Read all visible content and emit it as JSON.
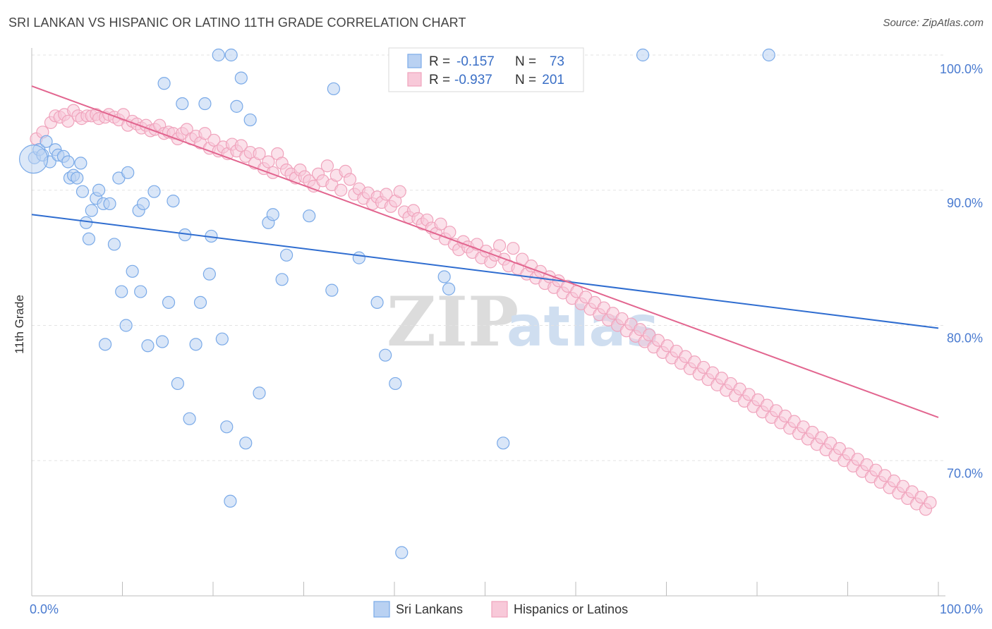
{
  "title": "SRI LANKAN VS HISPANIC OR LATINO 11TH GRADE CORRELATION CHART",
  "source": "Source: ZipAtlas.com",
  "watermark": {
    "zip": "ZIP",
    "atlas": "atlas"
  },
  "chart_data": {
    "type": "scatter",
    "xlabel": "",
    "ylabel": "11th Grade",
    "xlim": [
      0,
      100
    ],
    "ylim": [
      60,
      100
    ],
    "x_tick_labels": [
      "0.0%",
      "100.0%"
    ],
    "y_ticks": [
      70,
      80,
      90,
      100
    ],
    "y_tick_labels": [
      "70.0%",
      "80.0%",
      "90.0%",
      "100.0%"
    ],
    "grid": true,
    "legend_top": {
      "r_label": "R =",
      "n_label": "N =",
      "entries": [
        {
          "r": "-0.157",
          "n": "73"
        },
        {
          "r": "-0.937",
          "n": "201"
        }
      ]
    },
    "legend_bottom": [
      "Sri Lankans",
      "Hispanics or Latinos"
    ],
    "series": [
      {
        "name": "Sri Lankans",
        "color": "#7aaae8",
        "fill": "#b9d1f2",
        "trend": {
          "x": [
            0,
            100
          ],
          "y": [
            88.2,
            79.8
          ],
          "color": "#2f6dd0"
        },
        "points": [
          [
            0.3,
            92.4
          ],
          [
            0.8,
            93.0
          ],
          [
            1.2,
            92.6
          ],
          [
            1.6,
            93.6
          ],
          [
            2.0,
            92.1
          ],
          [
            2.6,
            93.0
          ],
          [
            2.9,
            92.6
          ],
          [
            3.5,
            92.5
          ],
          [
            4.0,
            92.1
          ],
          [
            4.2,
            90.9
          ],
          [
            4.6,
            91.1
          ],
          [
            5.0,
            90.9
          ],
          [
            5.4,
            92.0
          ],
          [
            5.6,
            89.9
          ],
          [
            6.0,
            87.6
          ],
          [
            6.3,
            86.4
          ],
          [
            6.6,
            88.5
          ],
          [
            7.1,
            89.4
          ],
          [
            7.4,
            90.0
          ],
          [
            7.9,
            89.0
          ],
          [
            8.1,
            78.6
          ],
          [
            8.6,
            89.0
          ],
          [
            9.1,
            86.0
          ],
          [
            9.6,
            90.9
          ],
          [
            9.9,
            82.5
          ],
          [
            10.4,
            80.0
          ],
          [
            10.6,
            91.3
          ],
          [
            11.1,
            84.0
          ],
          [
            11.8,
            88.5
          ],
          [
            12.0,
            82.5
          ],
          [
            12.3,
            89.0
          ],
          [
            12.8,
            78.5
          ],
          [
            13.5,
            89.9
          ],
          [
            14.4,
            78.8
          ],
          [
            14.6,
            97.9
          ],
          [
            15.1,
            81.7
          ],
          [
            15.6,
            89.2
          ],
          [
            16.1,
            75.7
          ],
          [
            16.6,
            96.4
          ],
          [
            16.9,
            86.7
          ],
          [
            17.4,
            73.1
          ],
          [
            18.1,
            78.6
          ],
          [
            18.6,
            81.7
          ],
          [
            19.1,
            96.4
          ],
          [
            19.6,
            83.8
          ],
          [
            19.8,
            86.6
          ],
          [
            20.6,
            100.0
          ],
          [
            21.0,
            79.0
          ],
          [
            21.5,
            72.5
          ],
          [
            21.9,
            67.0
          ],
          [
            22.0,
            100.0
          ],
          [
            22.6,
            96.2
          ],
          [
            23.1,
            98.3
          ],
          [
            23.6,
            71.3
          ],
          [
            24.1,
            95.2
          ],
          [
            25.1,
            75.0
          ],
          [
            26.1,
            87.6
          ],
          [
            26.6,
            88.2
          ],
          [
            27.6,
            83.4
          ],
          [
            28.1,
            85.2
          ],
          [
            30.6,
            88.1
          ],
          [
            33.1,
            82.6
          ],
          [
            33.3,
            97.5
          ],
          [
            36.1,
            85.0
          ],
          [
            38.1,
            81.7
          ],
          [
            39.0,
            77.8
          ],
          [
            40.1,
            75.7
          ],
          [
            40.8,
            63.2
          ],
          [
            45.5,
            83.6
          ],
          [
            46.0,
            82.7
          ],
          [
            52.0,
            71.3
          ],
          [
            67.4,
            100.0
          ],
          [
            81.3,
            100.0
          ]
        ]
      },
      {
        "name": "Hispanics or Latinos",
        "color": "#f0a3bc",
        "fill": "#f8c9d9",
        "trend": {
          "x": [
            0,
            100
          ],
          "y": [
            97.7,
            73.2
          ],
          "color": "#e2658f"
        },
        "points": [
          [
            0.5,
            93.8
          ],
          [
            1.2,
            94.3
          ],
          [
            2.1,
            95.0
          ],
          [
            2.6,
            95.5
          ],
          [
            3.1,
            95.4
          ],
          [
            3.6,
            95.6
          ],
          [
            4.0,
            95.1
          ],
          [
            4.6,
            95.9
          ],
          [
            5.1,
            95.5
          ],
          [
            5.5,
            95.3
          ],
          [
            6.1,
            95.5
          ],
          [
            6.6,
            95.5
          ],
          [
            7.1,
            95.6
          ],
          [
            7.4,
            95.3
          ],
          [
            8.1,
            95.4
          ],
          [
            8.5,
            95.6
          ],
          [
            9.1,
            95.4
          ],
          [
            9.6,
            95.2
          ],
          [
            10.1,
            95.6
          ],
          [
            10.6,
            94.8
          ],
          [
            11.1,
            95.1
          ],
          [
            11.6,
            94.9
          ],
          [
            12.1,
            94.6
          ],
          [
            12.6,
            94.8
          ],
          [
            13.1,
            94.4
          ],
          [
            13.6,
            94.5
          ],
          [
            14.1,
            94.8
          ],
          [
            14.6,
            94.2
          ],
          [
            15.1,
            94.3
          ],
          [
            15.6,
            94.2
          ],
          [
            16.1,
            93.8
          ],
          [
            16.6,
            94.2
          ],
          [
            17.1,
            94.5
          ],
          [
            17.6,
            93.8
          ],
          [
            18.1,
            94.0
          ],
          [
            18.6,
            93.5
          ],
          [
            19.1,
            94.2
          ],
          [
            19.6,
            93.1
          ],
          [
            20.1,
            93.7
          ],
          [
            20.6,
            92.9
          ],
          [
            21.1,
            93.2
          ],
          [
            21.6,
            92.7
          ],
          [
            22.1,
            93.4
          ],
          [
            22.6,
            92.9
          ],
          [
            23.1,
            93.3
          ],
          [
            23.6,
            92.5
          ],
          [
            24.1,
            92.8
          ],
          [
            24.6,
            92.0
          ],
          [
            25.1,
            92.7
          ],
          [
            25.6,
            91.6
          ],
          [
            26.1,
            92.1
          ],
          [
            26.6,
            91.3
          ],
          [
            27.1,
            92.7
          ],
          [
            27.6,
            92.0
          ],
          [
            28.1,
            91.5
          ],
          [
            28.6,
            91.2
          ],
          [
            29.1,
            90.9
          ],
          [
            29.6,
            91.5
          ],
          [
            30.1,
            91.0
          ],
          [
            30.6,
            90.7
          ],
          [
            31.1,
            90.3
          ],
          [
            31.6,
            91.2
          ],
          [
            32.1,
            90.7
          ],
          [
            32.6,
            91.8
          ],
          [
            33.1,
            90.4
          ],
          [
            33.6,
            91.1
          ],
          [
            34.1,
            90.0
          ],
          [
            34.6,
            91.4
          ],
          [
            35.1,
            90.8
          ],
          [
            35.6,
            89.7
          ],
          [
            36.1,
            90.1
          ],
          [
            36.6,
            89.4
          ],
          [
            37.1,
            89.8
          ],
          [
            37.6,
            89.0
          ],
          [
            38.1,
            89.5
          ],
          [
            38.6,
            89.1
          ],
          [
            39.1,
            89.7
          ],
          [
            39.6,
            88.8
          ],
          [
            40.1,
            89.2
          ],
          [
            40.6,
            89.9
          ],
          [
            41.1,
            88.4
          ],
          [
            41.6,
            88.0
          ],
          [
            42.1,
            88.5
          ],
          [
            42.6,
            87.9
          ],
          [
            43.1,
            87.5
          ],
          [
            43.6,
            87.8
          ],
          [
            44.1,
            87.2
          ],
          [
            44.6,
            86.8
          ],
          [
            45.1,
            87.5
          ],
          [
            45.6,
            86.4
          ],
          [
            46.1,
            86.9
          ],
          [
            46.6,
            86.0
          ],
          [
            47.1,
            85.6
          ],
          [
            47.6,
            86.2
          ],
          [
            48.1,
            85.8
          ],
          [
            48.6,
            85.4
          ],
          [
            49.1,
            86.0
          ],
          [
            49.6,
            85.0
          ],
          [
            50.1,
            85.5
          ],
          [
            50.6,
            84.7
          ],
          [
            51.1,
            85.2
          ],
          [
            51.6,
            85.9
          ],
          [
            52.1,
            84.9
          ],
          [
            52.6,
            84.4
          ],
          [
            53.1,
            85.7
          ],
          [
            53.6,
            84.2
          ],
          [
            54.1,
            84.9
          ],
          [
            54.6,
            83.8
          ],
          [
            55.1,
            84.4
          ],
          [
            55.6,
            83.5
          ],
          [
            56.1,
            84.0
          ],
          [
            56.6,
            83.1
          ],
          [
            57.1,
            83.6
          ],
          [
            57.6,
            82.8
          ],
          [
            58.1,
            83.3
          ],
          [
            58.6,
            82.4
          ],
          [
            59.1,
            82.9
          ],
          [
            59.6,
            82.0
          ],
          [
            60.1,
            82.5
          ],
          [
            60.6,
            81.6
          ],
          [
            61.1,
            82.1
          ],
          [
            61.6,
            81.2
          ],
          [
            62.1,
            81.7
          ],
          [
            62.6,
            80.8
          ],
          [
            63.1,
            81.3
          ],
          [
            63.6,
            80.4
          ],
          [
            64.1,
            80.9
          ],
          [
            64.6,
            80.0
          ],
          [
            65.1,
            80.5
          ],
          [
            65.6,
            79.6
          ],
          [
            66.1,
            80.1
          ],
          [
            66.6,
            79.2
          ],
          [
            67.1,
            79.7
          ],
          [
            67.6,
            78.8
          ],
          [
            68.1,
            79.3
          ],
          [
            68.6,
            78.4
          ],
          [
            69.1,
            78.9
          ],
          [
            69.6,
            78.0
          ],
          [
            70.1,
            78.5
          ],
          [
            70.6,
            77.6
          ],
          [
            71.1,
            78.1
          ],
          [
            71.6,
            77.2
          ],
          [
            72.1,
            77.7
          ],
          [
            72.6,
            76.8
          ],
          [
            73.1,
            77.3
          ],
          [
            73.6,
            76.4
          ],
          [
            74.1,
            76.9
          ],
          [
            74.6,
            76.0
          ],
          [
            75.1,
            76.5
          ],
          [
            75.6,
            75.6
          ],
          [
            76.1,
            76.1
          ],
          [
            76.6,
            75.2
          ],
          [
            77.1,
            75.7
          ],
          [
            77.6,
            74.8
          ],
          [
            78.1,
            75.3
          ],
          [
            78.6,
            74.4
          ],
          [
            79.1,
            74.9
          ],
          [
            79.6,
            74.0
          ],
          [
            80.1,
            74.5
          ],
          [
            80.6,
            73.6
          ],
          [
            81.1,
            74.1
          ],
          [
            81.6,
            73.2
          ],
          [
            82.1,
            73.7
          ],
          [
            82.6,
            72.8
          ],
          [
            83.1,
            73.3
          ],
          [
            83.6,
            72.4
          ],
          [
            84.1,
            72.9
          ],
          [
            84.6,
            72.0
          ],
          [
            85.1,
            72.5
          ],
          [
            85.6,
            71.6
          ],
          [
            86.1,
            72.1
          ],
          [
            86.6,
            71.2
          ],
          [
            87.1,
            71.7
          ],
          [
            87.6,
            70.8
          ],
          [
            88.1,
            71.3
          ],
          [
            88.6,
            70.4
          ],
          [
            89.1,
            70.9
          ],
          [
            89.6,
            70.0
          ],
          [
            90.1,
            70.5
          ],
          [
            90.6,
            69.6
          ],
          [
            91.1,
            70.1
          ],
          [
            91.6,
            69.2
          ],
          [
            92.1,
            69.7
          ],
          [
            92.6,
            68.8
          ],
          [
            93.1,
            69.3
          ],
          [
            93.6,
            68.4
          ],
          [
            94.1,
            68.9
          ],
          [
            94.6,
            68.0
          ],
          [
            95.1,
            68.5
          ],
          [
            95.6,
            67.6
          ],
          [
            96.1,
            68.1
          ],
          [
            96.6,
            67.2
          ],
          [
            97.1,
            67.7
          ],
          [
            97.6,
            66.8
          ],
          [
            98.1,
            67.3
          ],
          [
            98.6,
            66.4
          ],
          [
            99.1,
            66.9
          ]
        ]
      }
    ]
  }
}
